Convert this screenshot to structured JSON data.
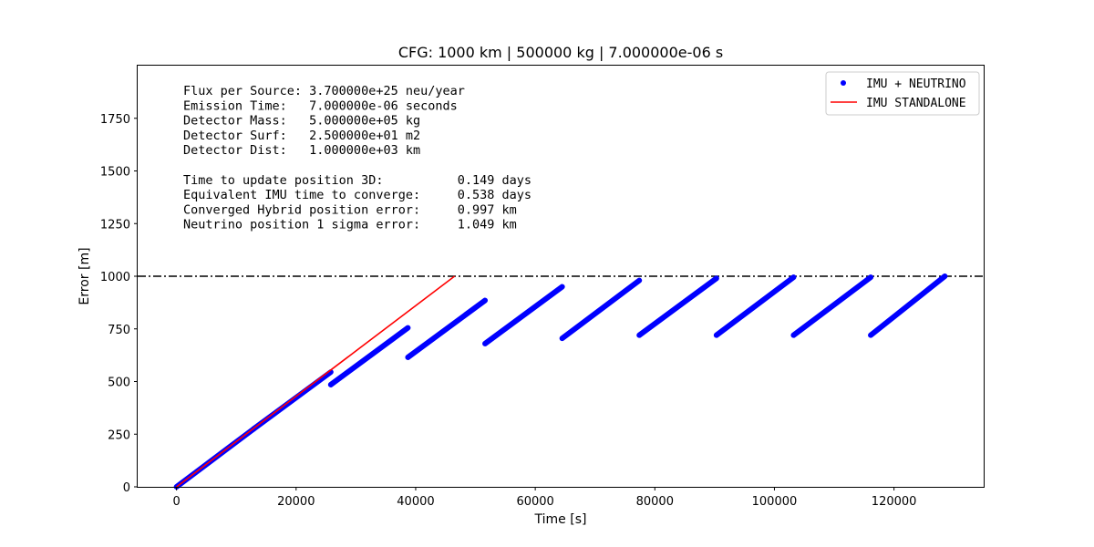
{
  "chart_data": {
    "type": "scatter",
    "title": "CFG: 1000 km | 500000 kg | 7.000000e-06 s",
    "xlabel": "Time [s]",
    "ylabel": "Error [m]",
    "xlim": [
      -6500,
      135000
    ],
    "ylim": [
      0,
      2000
    ],
    "xticks": [
      0,
      20000,
      40000,
      60000,
      80000,
      100000,
      120000
    ],
    "xtick_labels": [
      "0",
      "20000",
      "40000",
      "60000",
      "80000",
      "100000",
      "120000"
    ],
    "yticks": [
      0,
      250,
      500,
      750,
      1000,
      1250,
      1500,
      1750
    ],
    "ytick_labels": [
      "0",
      "250",
      "500",
      "750",
      "1000",
      "1250",
      "1500",
      "1750"
    ],
    "grid": false,
    "legend_position": "top-right",
    "threshold": {
      "y": 1000,
      "style": "dash-dot",
      "color": "#000000"
    },
    "series": [
      {
        "name": "IMU + NEUTRINO",
        "marker": "dot",
        "color": "#0000ff",
        "segments": [
          {
            "x": [
              0,
              12900
            ],
            "y": [
              0,
              275
            ]
          },
          {
            "x": [
              12900,
              25800
            ],
            "y": [
              275,
              545
            ]
          },
          {
            "x": [
              25800,
              38700
            ],
            "y": [
              485,
              755
            ]
          },
          {
            "x": [
              38700,
              51600
            ],
            "y": [
              615,
              885
            ]
          },
          {
            "x": [
              51600,
              64500
            ],
            "y": [
              680,
              950
            ]
          },
          {
            "x": [
              64500,
              77400
            ],
            "y": [
              705,
              980
            ]
          },
          {
            "x": [
              77400,
              90300
            ],
            "y": [
              720,
              990
            ]
          },
          {
            "x": [
              90300,
              103200
            ],
            "y": [
              720,
              995
            ]
          },
          {
            "x": [
              103200,
              116100
            ],
            "y": [
              720,
              995
            ]
          },
          {
            "x": [
              116100,
              128500
            ],
            "y": [
              720,
              1000
            ]
          }
        ]
      },
      {
        "name": "IMU STANDALONE",
        "marker": "line",
        "color": "#ff0000",
        "x": [
          0,
          46500
        ],
        "y": [
          0,
          1000
        ]
      }
    ],
    "annotation_lines": [
      "Flux per Source: 3.700000e+25 neu/year",
      "Emission Time:   7.000000e-06 seconds",
      "Detector Mass:   5.000000e+05 kg",
      "Detector Surf:   2.500000e+01 m2",
      "Detector Dist:   1.000000e+03 km",
      "",
      "Time to update position 3D:          0.149 days",
      "Equivalent IMU time to converge:     0.538 days",
      "Converged Hybrid position error:     0.997 km",
      "Neutrino position 1 sigma error:     1.049 km"
    ]
  }
}
